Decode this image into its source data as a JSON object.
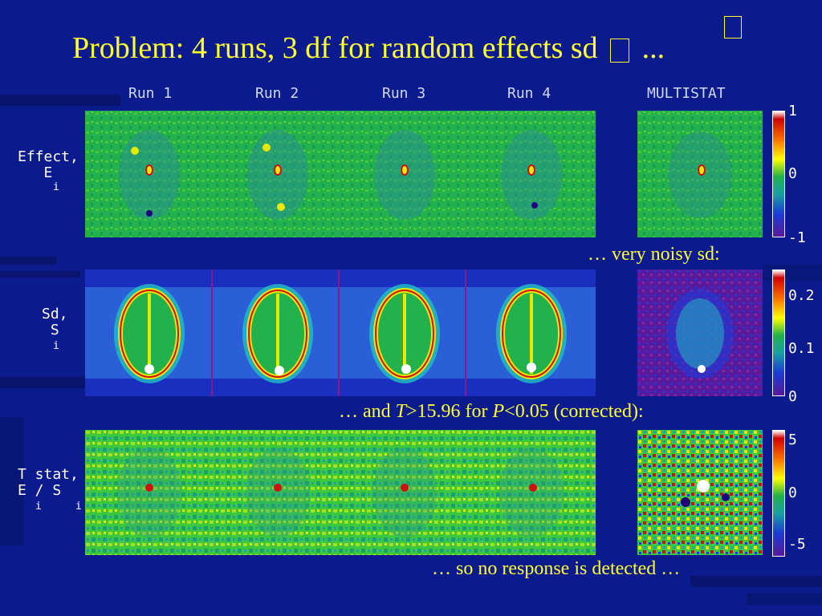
{
  "title": {
    "text": "Problem: 4 runs, 3 df for random effects sd",
    "ellipsis": "..."
  },
  "columns": [
    "Run 1",
    "Run 2",
    "Run 3",
    "Run 4",
    "MULTISTAT"
  ],
  "rows": [
    {
      "label": "Effect,",
      "sub_var": "E",
      "sub_idx": "i"
    },
    {
      "label": "Sd,",
      "sub_var": "S",
      "sub_idx": "i"
    },
    {
      "label": "T stat,",
      "sub_var": "E / S",
      "sub_idx": "i",
      "sub_idx2": "i"
    }
  ],
  "notes": {
    "noisy": "… very noisy sd:",
    "threshold_pre": "…  and ",
    "threshold_T": "T",
    "threshold_mid": ">15.96 for ",
    "threshold_P": "P",
    "threshold_post": "<0.05 (corrected):",
    "conclusion": "… so no response is detected …"
  },
  "colorbars": [
    {
      "ticks": [
        "1",
        "0",
        "-1"
      ]
    },
    {
      "ticks": [
        "0.2",
        "0.1",
        "0"
      ]
    },
    {
      "ticks": [
        "5",
        "0",
        "-5"
      ]
    }
  ],
  "colors": {
    "background": "#0a1a8c",
    "title": "#ffff33",
    "effect_bg": "#22b14c",
    "sd_bg": "#2a5fd8",
    "sd_multistat_bg": "#5a1a9a",
    "tstat_bg": "#3cc83c"
  }
}
